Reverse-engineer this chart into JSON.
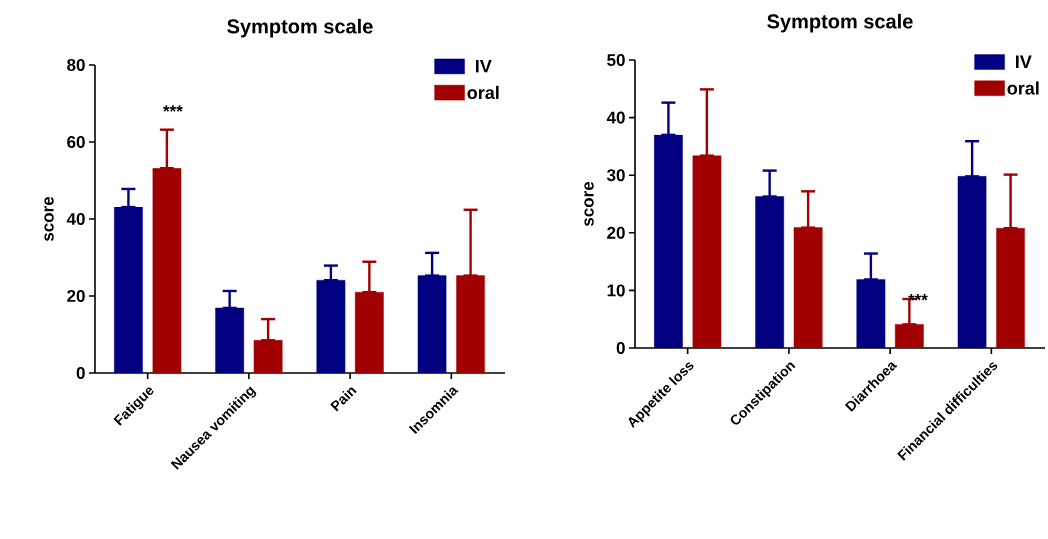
{
  "chart_data": [
    {
      "type": "bar",
      "title": "Symptom scale",
      "ylabel": "score",
      "categories": [
        "Fatigue",
        "Nausea vomiting",
        "Pain",
        "Insomnia"
      ],
      "ylim": [
        0,
        80
      ],
      "yticks": [
        0,
        20,
        40,
        60,
        80
      ],
      "legend": "top right",
      "series": [
        {
          "name": "IV",
          "color": "#000080",
          "values": [
            43.1,
            16.9,
            24.1,
            25.3
          ],
          "errors": [
            [
              43.1,
              47.8
            ],
            [
              16.9,
              21.3
            ],
            [
              24.1,
              27.9
            ],
            [
              25.3,
              31.2
            ]
          ]
        },
        {
          "name": "oral",
          "color": "#a00000",
          "values": [
            53.2,
            8.5,
            21.0,
            25.3
          ],
          "errors": [
            [
              53.2,
              63.2
            ],
            [
              8.5,
              14.0
            ],
            [
              21.0,
              28.9
            ],
            [
              25.3,
              42.4
            ]
          ]
        }
      ],
      "annotations": [
        "***"
      ]
    },
    {
      "type": "bar",
      "title": "Symptom scale",
      "ylabel": "score",
      "categories": [
        "Appetite loss",
        "Constipation",
        "Diarrhoea",
        "Financial difficulties"
      ],
      "ylim": [
        0,
        50
      ],
      "yticks": [
        0,
        10,
        20,
        30,
        40,
        50
      ],
      "legend": "top right",
      "series": [
        {
          "name": "IV",
          "color": "#000080",
          "values": [
            37.0,
            26.3,
            11.9,
            29.8
          ],
          "errors": [
            [
              37.0,
              42.6
            ],
            [
              26.3,
              30.8
            ],
            [
              11.9,
              16.4
            ],
            [
              29.8,
              35.9
            ]
          ]
        },
        {
          "name": "oral",
          "color": "#a00000",
          "values": [
            33.4,
            20.9,
            4.1,
            20.8
          ],
          "errors": [
            [
              33.4,
              44.9
            ],
            [
              20.9,
              27.2
            ],
            [
              4.1,
              8.5
            ],
            [
              20.8,
              30.1
            ]
          ]
        }
      ],
      "annotations": [
        "***"
      ]
    }
  ]
}
